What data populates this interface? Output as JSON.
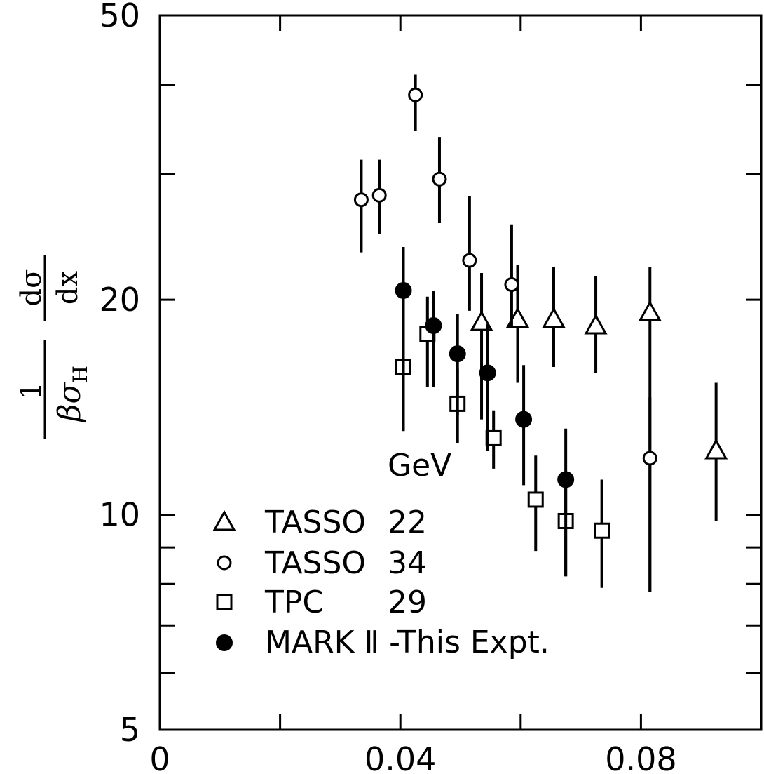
{
  "chart_data": {
    "type": "scatter",
    "title": "",
    "xlabel": "",
    "ylabel": {
      "numerator_left": "1",
      "denominator_left": "βσ",
      "denominator_left_sub": "H",
      "numerator_right": "dσ",
      "denominator_right": "dx"
    },
    "x_range": [
      0,
      0.1
    ],
    "y_range": [
      5,
      50
    ],
    "y_scale": "log",
    "x_tick_labels": [
      {
        "value": 0,
        "label": "0"
      },
      {
        "value": 0.04,
        "label": "0.04"
      },
      {
        "value": 0.08,
        "label": "0.08"
      }
    ],
    "y_tick_labels": [
      {
        "value": 5,
        "label": "5"
      },
      {
        "value": 10,
        "label": "10"
      },
      {
        "value": 20,
        "label": "20"
      },
      {
        "value": 50,
        "label": "50"
      }
    ],
    "legend": {
      "heading": "GeV",
      "placement": "bottom-left",
      "entries": [
        {
          "series": 0,
          "name": "TASSO",
          "energy": "22"
        },
        {
          "series": 1,
          "name": "TASSO",
          "energy": "34"
        },
        {
          "series": 2,
          "name": "TPC",
          "energy": "29"
        },
        {
          "series": 3,
          "name": "MARK Ⅱ -This Expt.",
          "energy": ""
        }
      ]
    },
    "series": [
      {
        "name": "TASSO 22",
        "marker": "open-triangle",
        "points": [
          {
            "x": 0.0535,
            "y": 18.6,
            "lo": 13.6,
            "hi": 21.8
          },
          {
            "x": 0.0595,
            "y": 18.8,
            "lo": 15.3,
            "hi": 22.4
          },
          {
            "x": 0.0655,
            "y": 18.8,
            "lo": 16.1,
            "hi": 22.2
          },
          {
            "x": 0.0725,
            "y": 18.4,
            "lo": 15.8,
            "hi": 21.6
          },
          {
            "x": 0.0815,
            "y": 19.2,
            "lo": 7.8,
            "hi": 22.2
          },
          {
            "x": 0.0925,
            "y": 12.3,
            "lo": 9.8,
            "hi": 15.3
          }
        ]
      },
      {
        "name": "TASSO 34",
        "marker": "open-circle",
        "points": [
          {
            "x": 0.0335,
            "y": 27.6,
            "lo": 23.3,
            "hi": 31.4
          },
          {
            "x": 0.0365,
            "y": 28.0,
            "lo": 24.7,
            "hi": 31.4
          },
          {
            "x": 0.0425,
            "y": 38.7,
            "lo": 34.5,
            "hi": 41.3
          },
          {
            "x": 0.0465,
            "y": 29.5,
            "lo": 25.6,
            "hi": 33.8
          },
          {
            "x": 0.0515,
            "y": 22.7,
            "lo": 19.3,
            "hi": 27.9
          },
          {
            "x": 0.0585,
            "y": 21.0,
            "lo": 18.3,
            "hi": 25.5
          },
          {
            "x": 0.0815,
            "y": 12.0,
            "lo": 7.8,
            "hi": 14.6
          }
        ]
      },
      {
        "name": "TPC 29",
        "marker": "open-square",
        "points": [
          {
            "x": 0.0405,
            "y": 16.1,
            "lo": 13.1,
            "hi": 19.4
          },
          {
            "x": 0.0445,
            "y": 17.9,
            "lo": 15.1,
            "hi": 20.2
          },
          {
            "x": 0.0495,
            "y": 14.3,
            "lo": 12.6,
            "hi": 16.0
          },
          {
            "x": 0.0555,
            "y": 12.8,
            "lo": 11.6,
            "hi": 14.0
          },
          {
            "x": 0.0625,
            "y": 10.5,
            "lo": 8.9,
            "hi": 12.1
          },
          {
            "x": 0.0675,
            "y": 9.8,
            "lo": 8.2,
            "hi": 11.1
          },
          {
            "x": 0.0735,
            "y": 9.5,
            "lo": 7.9,
            "hi": 11.2
          }
        ]
      },
      {
        "name": "MARK Ⅱ -This Expt.",
        "marker": "filled-circle",
        "points": [
          {
            "x": 0.0405,
            "y": 20.6,
            "lo": 13.1,
            "hi": 23.7
          },
          {
            "x": 0.0455,
            "y": 18.4,
            "lo": 15.1,
            "hi": 20.6
          },
          {
            "x": 0.0495,
            "y": 16.8,
            "lo": 13.8,
            "hi": 19.1
          },
          {
            "x": 0.0545,
            "y": 15.8,
            "lo": 12.3,
            "hi": 18.5
          },
          {
            "x": 0.0605,
            "y": 13.6,
            "lo": 11.0,
            "hi": 16.2
          },
          {
            "x": 0.0675,
            "y": 11.2,
            "lo": 8.2,
            "hi": 13.2
          }
        ]
      }
    ]
  }
}
